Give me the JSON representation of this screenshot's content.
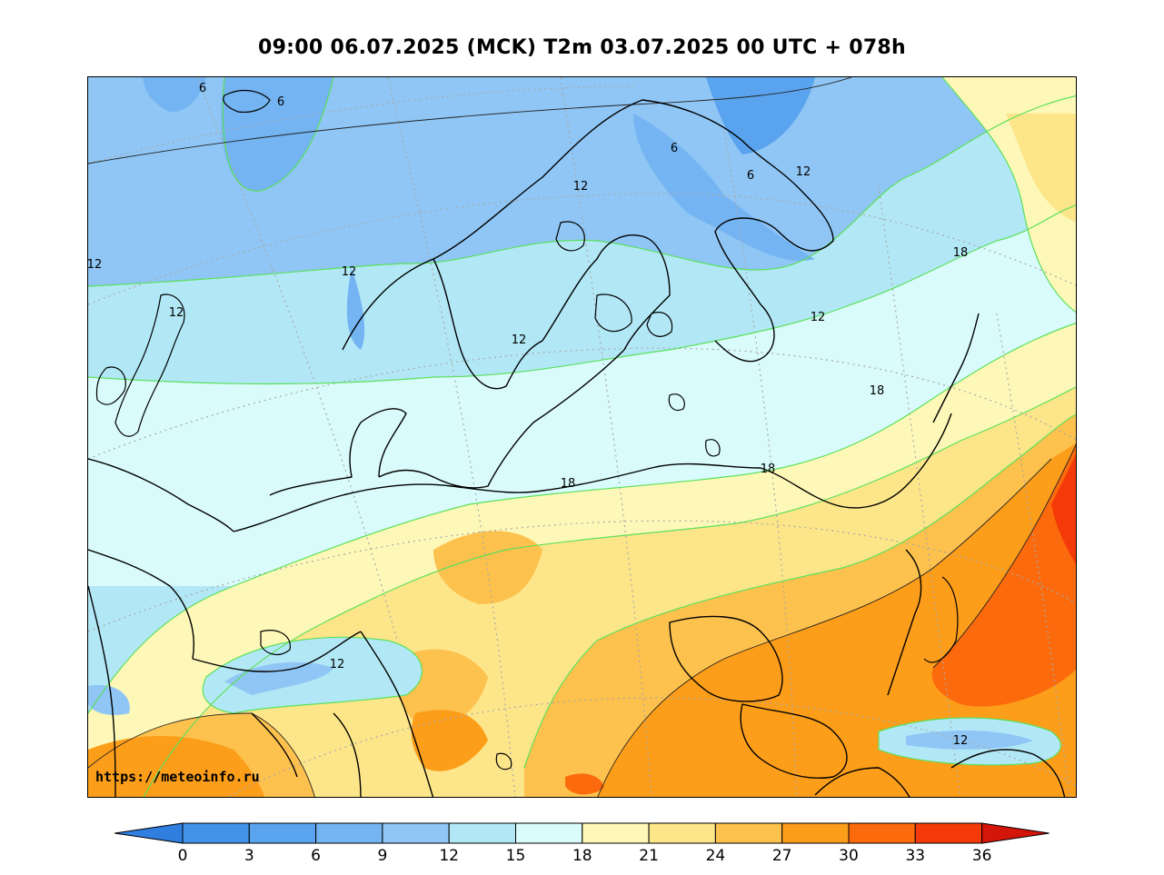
{
  "title": "09:00 06.07.2025 (MCK) T2m 03.07.2025 00 UTC + 078h",
  "watermark": "https://meteoinfo.ru",
  "colorbar": {
    "ticks": [
      "0",
      "3",
      "6",
      "9",
      "12",
      "15",
      "18",
      "21",
      "24",
      "27",
      "30",
      "33",
      "36"
    ],
    "colors": [
      "#4393e8",
      "#5aa3ee",
      "#74b4f2",
      "#8fc6f5",
      "#b2e8f6",
      "#d9fbfb",
      "#fef8b8",
      "#fde68a",
      "#fdc14d",
      "#fd9e1a",
      "#fb6a0c",
      "#f53a0a"
    ],
    "under_color": "#2f7ee0",
    "over_color": "#d4150a"
  },
  "isotherm_labels": [
    {
      "text": "6"
    },
    {
      "text": "6"
    },
    {
      "text": "6"
    },
    {
      "text": "6"
    },
    {
      "text": "12"
    },
    {
      "text": "12"
    },
    {
      "text": "12"
    },
    {
      "text": "12"
    },
    {
      "text": "12"
    },
    {
      "text": "12"
    },
    {
      "text": "12"
    },
    {
      "text": "12"
    },
    {
      "text": "12"
    },
    {
      "text": "18"
    },
    {
      "text": "18"
    },
    {
      "text": "18"
    },
    {
      "text": "18"
    }
  ]
}
